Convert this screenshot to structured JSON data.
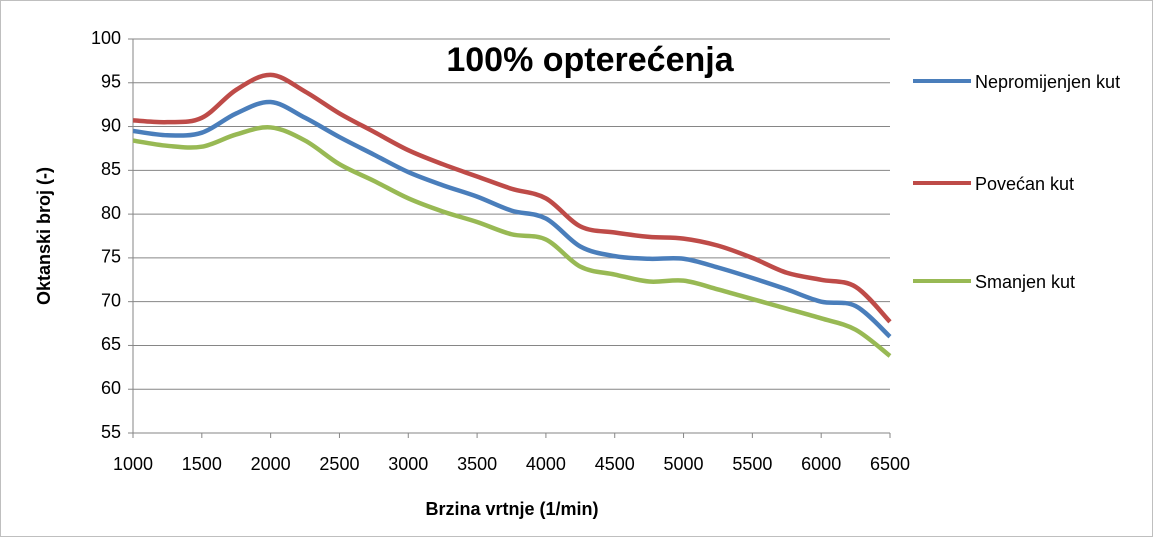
{
  "chart_data": {
    "type": "line",
    "title": "100% opterećenja",
    "x_label": "Brzina vrtnje (1/min)",
    "y_label": "Oktanski broj (-)",
    "x": [
      1000,
      1250,
      1500,
      1750,
      2000,
      2250,
      2500,
      2750,
      3000,
      3250,
      3500,
      3750,
      4000,
      4250,
      4500,
      4750,
      5000,
      5250,
      5500,
      5750,
      6000,
      6250,
      6500
    ],
    "series": [
      {
        "name": "Nepromijenjen kut",
        "color": "#4a7ebb",
        "values": [
          89.5,
          89.0,
          89.3,
          91.5,
          92.8,
          91.0,
          88.8,
          86.8,
          84.8,
          83.3,
          82.0,
          80.4,
          79.5,
          76.3,
          75.2,
          74.9,
          74.9,
          73.9,
          72.7,
          71.4,
          70.0,
          69.5,
          66.0
        ]
      },
      {
        "name": "Povećan kut",
        "color": "#be4b48",
        "values": [
          90.7,
          90.5,
          91.0,
          94.2,
          95.9,
          94.0,
          91.5,
          89.4,
          87.3,
          85.7,
          84.3,
          82.9,
          81.8,
          78.6,
          77.9,
          77.4,
          77.2,
          76.4,
          75.0,
          73.3,
          72.5,
          71.7,
          67.7
        ]
      },
      {
        "name": "Smanjen kut",
        "color": "#98b954",
        "values": [
          88.4,
          87.8,
          87.7,
          89.1,
          89.9,
          88.4,
          85.7,
          83.8,
          81.8,
          80.3,
          79.1,
          77.7,
          77.1,
          74.0,
          73.1,
          72.3,
          72.4,
          71.4,
          70.3,
          69.2,
          68.1,
          66.8,
          63.8
        ]
      }
    ],
    "xlim": [
      1000,
      6500
    ],
    "xticks": [
      1000,
      1500,
      2000,
      2500,
      3000,
      3500,
      4000,
      4500,
      5000,
      5500,
      6000,
      6500
    ],
    "ylim": [
      55,
      100
    ],
    "yticks": [
      55,
      60,
      65,
      70,
      75,
      80,
      85,
      90,
      95,
      100
    ],
    "grid": true,
    "legend": "right",
    "smooth": true
  }
}
